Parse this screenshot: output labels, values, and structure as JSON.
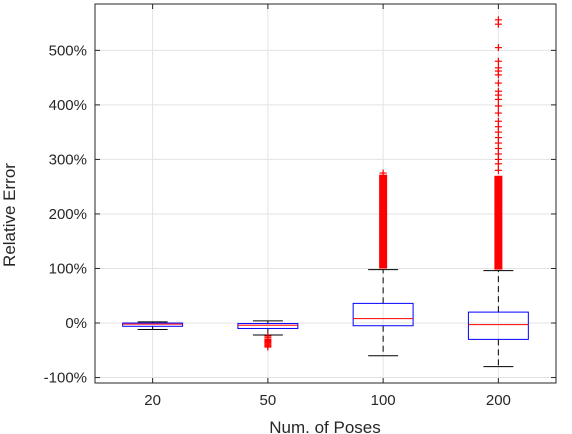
{
  "chart_data": {
    "type": "box",
    "title": "",
    "xlabel": "Num. of Poses",
    "ylabel": "Relative Error",
    "categories": [
      "20",
      "50",
      "100",
      "200"
    ],
    "ylim": [
      -110,
      585
    ],
    "yticks": [
      -100,
      0,
      100,
      200,
      300,
      400,
      500
    ],
    "ytick_labels": [
      "-100%",
      "0%",
      "100%",
      "200%",
      "300%",
      "400%",
      "500%"
    ],
    "grid": true,
    "boxes": [
      {
        "label": "20",
        "whisker_low": -12,
        "q1": -6,
        "median": -2,
        "q3": 0,
        "whisker_high": 2,
        "outliers": []
      },
      {
        "label": "50",
        "whisker_low": -22,
        "q1": -10,
        "median": -4,
        "q3": -1,
        "whisker_high": 4,
        "outliers": [
          -24,
          -27,
          -30,
          -32,
          -34,
          -36,
          -38,
          -40,
          -42,
          -44
        ]
      },
      {
        "label": "100",
        "whisker_low": -60,
        "q1": -5,
        "median": 8,
        "q3": 36,
        "whisker_high": 98,
        "outliers_dense_range": [
          100,
          272
        ],
        "outliers": [
          275
        ]
      },
      {
        "label": "200",
        "whisker_low": -80,
        "q1": -30,
        "median": -3,
        "q3": 20,
        "whisker_high": 96,
        "outliers_dense_range": [
          98,
          270
        ],
        "outliers": [
          280,
          292,
          300,
          310,
          320,
          330,
          340,
          350,
          360,
          370,
          385,
          398,
          410,
          418,
          425,
          440,
          455,
          462,
          468,
          480,
          505,
          548,
          556
        ]
      }
    ],
    "colors": {
      "box": "#0000ff",
      "median": "#ff0000",
      "whisker": "#000000",
      "outlier": "#ff0000",
      "grid": "#e3e3e3",
      "axis": "#262626"
    }
  }
}
